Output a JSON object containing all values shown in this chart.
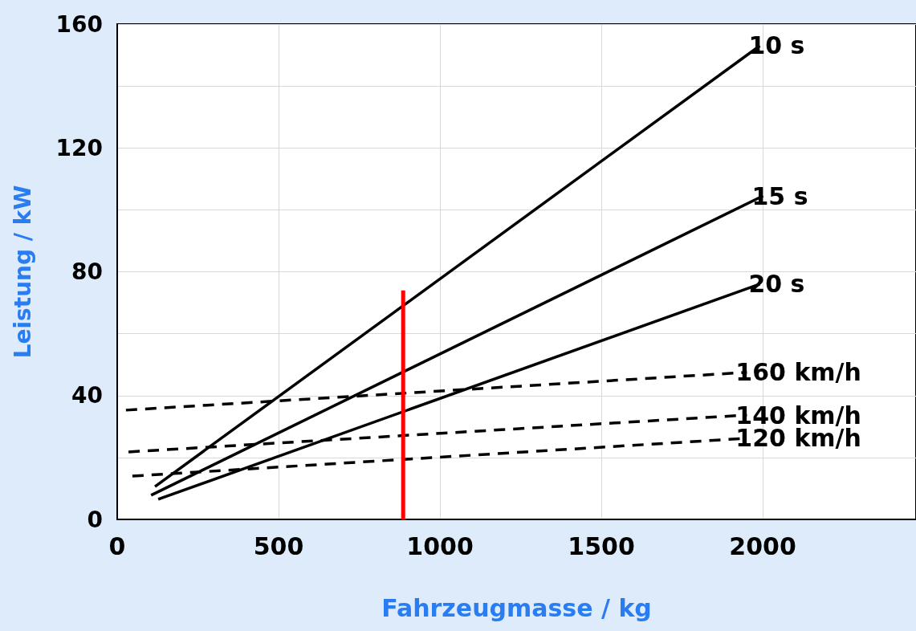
{
  "chart_data": {
    "type": "line",
    "xlabel": "Fahrzeugmasse / kg",
    "ylabel": "Leistung / kW",
    "xlim": [
      0,
      2475
    ],
    "xticks": [
      0,
      500,
      1000,
      1500,
      2000
    ],
    "ylim": [
      0,
      160
    ],
    "yticks": [
      0,
      {
        "value": 20,
        "label": null
      },
      40,
      {
        "value": 60,
        "label": null
      },
      80,
      {
        "value": 100,
        "label": null
      },
      120,
      {
        "value": 140,
        "label": null
      },
      160
    ],
    "grid": true,
    "legend": false,
    "marker": "none",
    "series": [
      {
        "name": "10 s",
        "color": "#000000",
        "x": [
          117,
          1991
        ],
        "values": [
          10.6,
          153
        ],
        "line_style": "solid"
      },
      {
        "name": "15 s",
        "color": "#000000",
        "x": [
          105,
          2001
        ],
        "values": [
          7.8,
          104.5
        ],
        "line_style": "solid"
      },
      {
        "name": "20 s",
        "color": "#000000",
        "x": [
          127,
          1991
        ],
        "values": [
          6.5,
          76
        ],
        "line_style": "solid"
      },
      {
        "name": "160 km/h",
        "color": "#000000",
        "x": [
          27,
          1951
        ],
        "values": [
          35.3,
          47.5
        ],
        "line_style": "dashed"
      },
      {
        "name": "140 km/h",
        "color": "#000000",
        "x": [
          35,
          1951
        ],
        "values": [
          21.8,
          33.7
        ],
        "line_style": "dashed"
      },
      {
        "name": "120 km/h",
        "color": "#000000",
        "x": [
          47,
          1951
        ],
        "values": [
          14,
          26.2
        ],
        "line_style": "dashed"
      },
      {
        "color": "#ff0000",
        "x": [
          886,
          886
        ],
        "values": [
          0,
          74
        ],
        "line_style": "solid"
      }
    ]
  }
}
